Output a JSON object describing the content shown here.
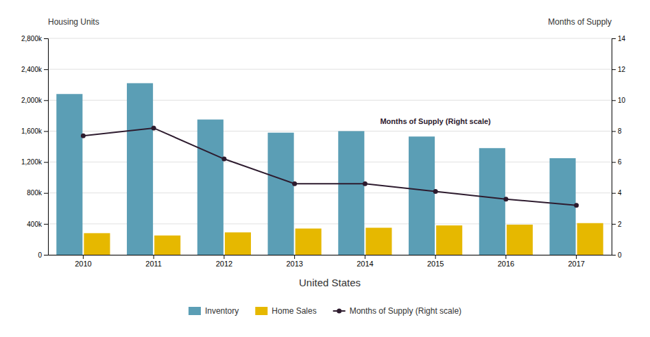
{
  "chart_data": {
    "type": "bar",
    "categories": [
      "2010",
      "2011",
      "2012",
      "2013",
      "2014",
      "2015",
      "2016",
      "2017"
    ],
    "series": [
      {
        "name": "Inventory",
        "color": "#5b9eb5",
        "values": [
          2080000,
          2220000,
          1750000,
          1580000,
          1600000,
          1530000,
          1380000,
          1250000
        ]
      },
      {
        "name": "Home Sales",
        "color": "#e6b800",
        "values": [
          280000,
          250000,
          290000,
          340000,
          350000,
          380000,
          390000,
          410000
        ]
      },
      {
        "name": "Months of Supply (Right scale)",
        "type": "line",
        "axis": "y2",
        "color": "#2d1b2e",
        "marker": "circle",
        "values": [
          7.7,
          8.2,
          6.2,
          4.6,
          4.6,
          4.1,
          3.6,
          3.2
        ]
      }
    ],
    "x_label": "United States",
    "y_label": "Housing Units",
    "y2_label": "Months of Supply",
    "ylim": [
      0,
      2800000
    ],
    "yticks": [
      0,
      {
        "value": 400000,
        "label": "400k"
      },
      {
        "value": 800000,
        "label": "800k"
      },
      {
        "value": 1200000,
        "label": "1,200k"
      },
      {
        "value": 1600000,
        "label": "1,600k"
      },
      {
        "value": 2000000,
        "label": "2,000k"
      },
      {
        "value": 2400000,
        "label": "2,400k"
      },
      {
        "value": 2800000,
        "label": "2,800k"
      }
    ],
    "y2lim": [
      0,
      14
    ],
    "y2ticks": [
      0,
      2,
      4,
      6,
      8,
      10,
      12,
      14
    ],
    "annotations": [
      {
        "text": "Months of Supply (Right scale)",
        "category": "2015"
      }
    ],
    "grid": true,
    "legend": "bottom"
  }
}
